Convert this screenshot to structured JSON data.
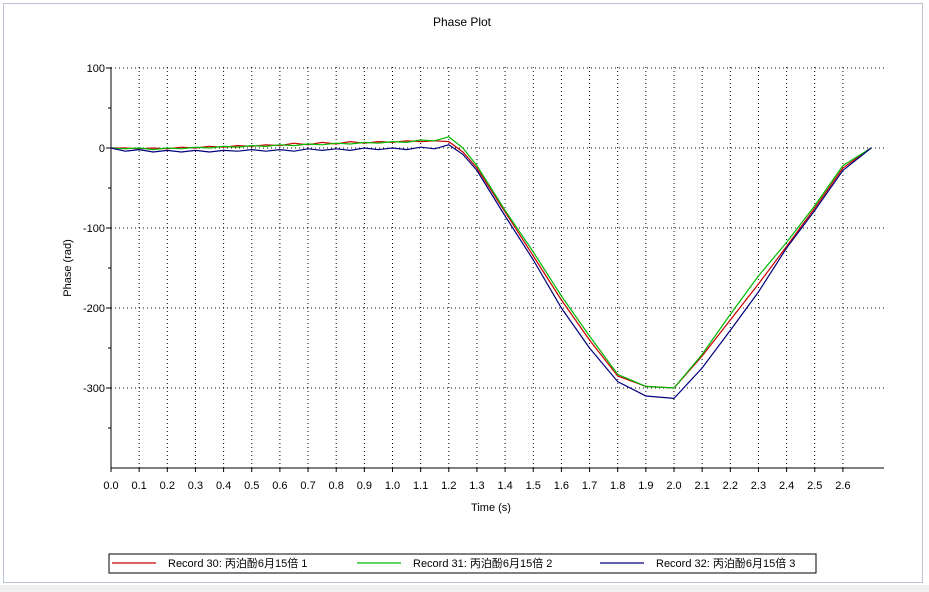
{
  "chart_data": {
    "type": "line",
    "title": "Phase Plot",
    "xlabel": "Time (s)",
    "ylabel": "Phase (rad)",
    "xlim": [
      0.0,
      2.7
    ],
    "ylim": [
      -400,
      100
    ],
    "x_ticks": [
      "0.0",
      "0.1",
      "0.2",
      "0.3",
      "0.4",
      "0.5",
      "0.6",
      "0.7",
      "0.8",
      "0.9",
      "1.0",
      "1.1",
      "1.2",
      "1.3",
      "1.4",
      "1.5",
      "1.6",
      "1.7",
      "1.8",
      "1.9",
      "2.0",
      "2.1",
      "2.2",
      "2.3",
      "2.4",
      "2.5",
      "2.6"
    ],
    "y_ticks": [
      "100",
      "0",
      "-100",
      "-200",
      "-300"
    ],
    "grid": true,
    "legend_position": "bottom",
    "series": [
      {
        "name": "Record 30: 丙泊酚6月15倍 1",
        "color": "#cc0000",
        "x": [
          0.0,
          0.05,
          0.1,
          0.15,
          0.2,
          0.25,
          0.3,
          0.35,
          0.4,
          0.45,
          0.5,
          0.55,
          0.6,
          0.65,
          0.7,
          0.75,
          0.8,
          0.85,
          0.9,
          0.95,
          1.0,
          1.05,
          1.1,
          1.15,
          1.2,
          1.25,
          1.3,
          1.4,
          1.5,
          1.6,
          1.7,
          1.8,
          1.9,
          2.0,
          2.1,
          2.2,
          2.3,
          2.4,
          2.5,
          2.6,
          2.7
        ],
        "y": [
          0,
          0,
          -1,
          0,
          -1,
          1,
          0,
          2,
          1,
          3,
          2,
          4,
          3,
          6,
          4,
          7,
          5,
          8,
          6,
          8,
          7,
          9,
          8,
          9,
          8,
          -5,
          -25,
          -80,
          -135,
          -190,
          -240,
          -285,
          -298,
          -300,
          -260,
          -215,
          -170,
          -123,
          -75,
          -25,
          0
        ]
      },
      {
        "name": "Record 31: 丙泊酚6月15倍 2",
        "color": "#00bb00",
        "x": [
          0.0,
          0.05,
          0.1,
          0.15,
          0.2,
          0.25,
          0.3,
          0.35,
          0.4,
          0.45,
          0.5,
          0.55,
          0.6,
          0.65,
          0.7,
          0.75,
          0.8,
          0.85,
          0.9,
          0.95,
          1.0,
          1.05,
          1.1,
          1.15,
          1.2,
          1.25,
          1.3,
          1.4,
          1.5,
          1.6,
          1.7,
          1.8,
          1.9,
          2.0,
          2.1,
          2.2,
          2.3,
          2.4,
          2.5,
          2.6,
          2.7
        ],
        "y": [
          0,
          -1,
          0,
          -2,
          0,
          -1,
          1,
          0,
          2,
          1,
          3,
          2,
          4,
          3,
          5,
          4,
          6,
          5,
          7,
          6,
          8,
          7,
          10,
          9,
          14,
          0,
          -22,
          -78,
          -130,
          -185,
          -235,
          -283,
          -298,
          -300,
          -258,
          -208,
          -160,
          -118,
          -72,
          -22,
          0
        ]
      },
      {
        "name": "Record 32: 丙泊酚6月15倍 3",
        "color": "#00007f",
        "x": [
          0.0,
          0.05,
          0.1,
          0.15,
          0.2,
          0.25,
          0.3,
          0.35,
          0.4,
          0.45,
          0.5,
          0.55,
          0.6,
          0.65,
          0.7,
          0.75,
          0.8,
          0.85,
          0.9,
          0.95,
          1.0,
          1.05,
          1.1,
          1.15,
          1.2,
          1.25,
          1.3,
          1.4,
          1.5,
          1.6,
          1.7,
          1.8,
          1.9,
          2.0,
          2.1,
          2.2,
          2.3,
          2.4,
          2.5,
          2.6,
          2.7
        ],
        "y": [
          0,
          -4,
          -2,
          -5,
          -3,
          -5,
          -3,
          -5,
          -3,
          -4,
          -2,
          -4,
          -2,
          -4,
          -1,
          -3,
          -1,
          -3,
          0,
          -2,
          0,
          -2,
          1,
          -1,
          4,
          -8,
          -28,
          -85,
          -140,
          -200,
          -250,
          -292,
          -310,
          -313,
          -275,
          -228,
          -180,
          -125,
          -78,
          -28,
          0
        ]
      }
    ]
  }
}
